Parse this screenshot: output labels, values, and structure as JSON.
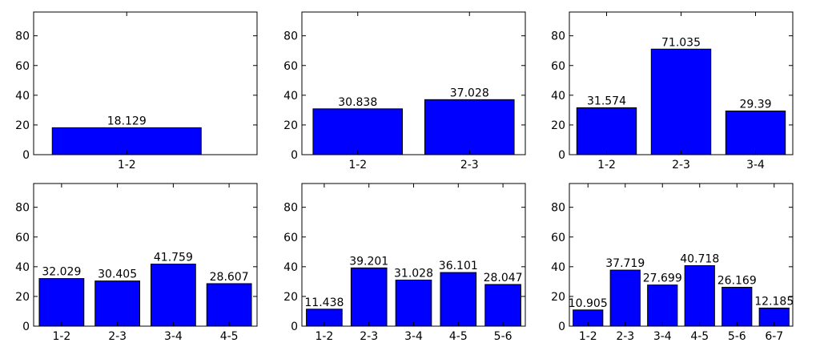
{
  "colors": {
    "bar": "#0000ff",
    "frame": "#000000",
    "background": "#ffffff"
  },
  "chart_data": [
    {
      "type": "bar",
      "categories": [
        "1-2"
      ],
      "values": [
        18.129
      ],
      "value_labels": [
        "18.129"
      ],
      "ylim": [
        0,
        96
      ],
      "yticks": [
        0,
        20,
        40,
        60,
        80
      ],
      "ytick_labels": [
        "0",
        "20",
        "40",
        "60",
        "80"
      ],
      "grid": false
    },
    {
      "type": "bar",
      "categories": [
        "1-2",
        "2-3"
      ],
      "values": [
        30.838,
        37.028
      ],
      "value_labels": [
        "30.838",
        "37.028"
      ],
      "ylim": [
        0,
        96
      ],
      "yticks": [
        0,
        20,
        40,
        60,
        80
      ],
      "ytick_labels": [
        "0",
        "20",
        "40",
        "60",
        "80"
      ],
      "grid": false
    },
    {
      "type": "bar",
      "categories": [
        "1-2",
        "2-3",
        "3-4"
      ],
      "values": [
        31.574,
        71.035,
        29.39
      ],
      "value_labels": [
        "31.574",
        "71.035",
        "29.39"
      ],
      "ylim": [
        0,
        96
      ],
      "yticks": [
        0,
        20,
        40,
        60,
        80
      ],
      "ytick_labels": [
        "0",
        "20",
        "40",
        "60",
        "80"
      ],
      "grid": false
    },
    {
      "type": "bar",
      "categories": [
        "1-2",
        "2-3",
        "3-4",
        "4-5"
      ],
      "values": [
        32.029,
        30.405,
        41.759,
        28.607
      ],
      "value_labels": [
        "32.029",
        "30.405",
        "41.759",
        "28.607"
      ],
      "ylim": [
        0,
        96
      ],
      "yticks": [
        0,
        20,
        40,
        60,
        80
      ],
      "ytick_labels": [
        "0",
        "20",
        "40",
        "60",
        "80"
      ],
      "grid": false
    },
    {
      "type": "bar",
      "categories": [
        "1-2",
        "2-3",
        "3-4",
        "4-5",
        "5-6"
      ],
      "values": [
        11.438,
        39.201,
        31.028,
        36.101,
        28.047
      ],
      "value_labels": [
        "11.438",
        "39.201",
        "31.028",
        "36.101",
        "28.047"
      ],
      "ylim": [
        0,
        96
      ],
      "yticks": [
        0,
        20,
        40,
        60,
        80
      ],
      "ytick_labels": [
        "0",
        "20",
        "40",
        "60",
        "80"
      ],
      "grid": false
    },
    {
      "type": "bar",
      "categories": [
        "1-2",
        "2-3",
        "3-4",
        "4-5",
        "5-6",
        "6-7"
      ],
      "values": [
        10.905,
        37.719,
        27.699,
        40.718,
        26.169,
        12.185
      ],
      "value_labels": [
        "10.905",
        "37.719",
        "27.699",
        "40.718",
        "26.169",
        "12.185"
      ],
      "ylim": [
        0,
        96
      ],
      "yticks": [
        0,
        20,
        40,
        60,
        80
      ],
      "ytick_labels": [
        "0",
        "20",
        "40",
        "60",
        "80"
      ],
      "grid": false
    }
  ]
}
